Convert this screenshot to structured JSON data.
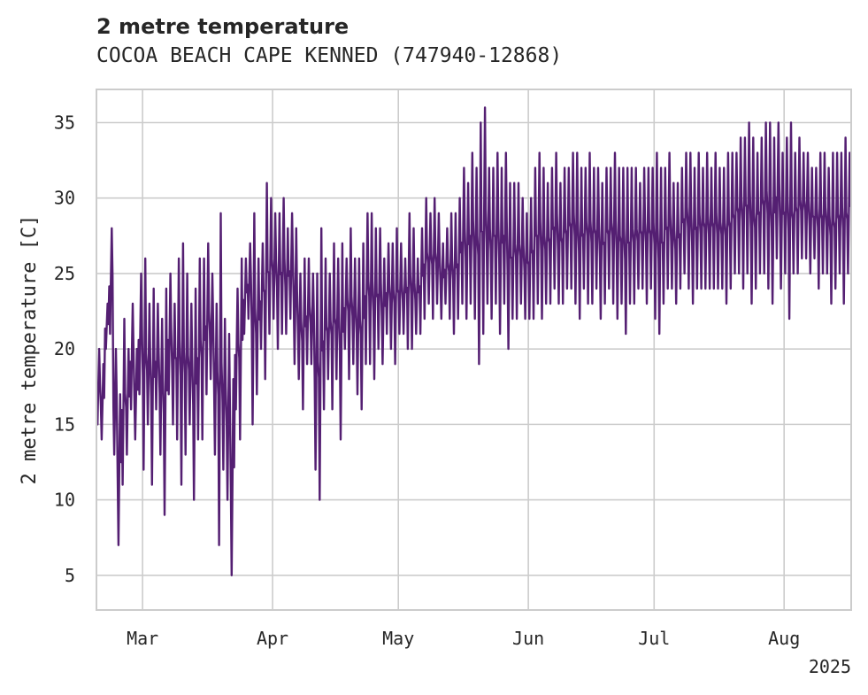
{
  "chart_data": {
    "type": "line",
    "title": "2 metre temperature",
    "subtitle": "COCOA BEACH CAPE KENNED (747940-12868)",
    "ylabel": "2 metre temperature [C]",
    "xlabel": "",
    "year_label": "2025",
    "x_range": [
      "2025-02-18",
      "2025-08-16"
    ],
    "ylim": [
      2.7,
      37.2
    ],
    "yticks": [
      5,
      10,
      15,
      20,
      25,
      30,
      35
    ],
    "xticks": [
      {
        "date": "2025-03-01",
        "label": "Mar"
      },
      {
        "date": "2025-04-01",
        "label": "Apr"
      },
      {
        "date": "2025-05-01",
        "label": "May"
      },
      {
        "date": "2025-06-01",
        "label": "Jun"
      },
      {
        "date": "2025-07-01",
        "label": "Jul"
      },
      {
        "date": "2025-08-01",
        "label": "Aug"
      }
    ],
    "grid": true,
    "line_color": "#541f72",
    "series": [
      {
        "x": [
          "2025-02-18",
          "2025-02-19",
          "2025-02-20",
          "2025-02-21",
          "2025-02-22",
          "2025-02-23",
          "2025-02-24",
          "2025-02-25",
          "2025-02-26",
          "2025-02-27",
          "2025-02-28",
          "2025-03-01",
          "2025-03-02",
          "2025-03-03",
          "2025-03-04",
          "2025-03-05",
          "2025-03-06",
          "2025-03-07",
          "2025-03-08",
          "2025-03-09",
          "2025-03-10",
          "2025-03-11",
          "2025-03-12",
          "2025-03-13",
          "2025-03-14",
          "2025-03-15",
          "2025-03-16",
          "2025-03-17",
          "2025-03-18",
          "2025-03-19",
          "2025-03-20",
          "2025-03-21",
          "2025-03-22",
          "2025-03-23",
          "2025-03-24",
          "2025-03-25",
          "2025-03-26",
          "2025-03-27",
          "2025-03-28",
          "2025-03-29",
          "2025-03-30",
          "2025-03-31",
          "2025-04-01",
          "2025-04-02",
          "2025-04-03",
          "2025-04-04",
          "2025-04-05",
          "2025-04-06",
          "2025-04-07",
          "2025-04-08",
          "2025-04-09",
          "2025-04-10",
          "2025-04-11",
          "2025-04-12",
          "2025-04-13",
          "2025-04-14",
          "2025-04-15",
          "2025-04-16",
          "2025-04-17",
          "2025-04-18",
          "2025-04-19",
          "2025-04-20",
          "2025-04-21",
          "2025-04-22",
          "2025-04-23",
          "2025-04-24",
          "2025-04-25",
          "2025-04-26",
          "2025-04-27",
          "2025-04-28",
          "2025-04-29",
          "2025-04-30",
          "2025-05-01",
          "2025-05-02",
          "2025-05-03",
          "2025-05-04",
          "2025-05-05",
          "2025-05-06",
          "2025-05-07",
          "2025-05-08",
          "2025-05-09",
          "2025-05-10",
          "2025-05-11",
          "2025-05-12",
          "2025-05-13",
          "2025-05-14",
          "2025-05-15",
          "2025-05-16",
          "2025-05-17",
          "2025-05-18",
          "2025-05-19",
          "2025-05-20",
          "2025-05-21",
          "2025-05-22",
          "2025-05-23",
          "2025-05-24",
          "2025-05-25",
          "2025-05-26",
          "2025-05-27",
          "2025-05-28",
          "2025-05-29",
          "2025-05-30",
          "2025-05-31",
          "2025-06-01",
          "2025-06-02",
          "2025-06-03",
          "2025-06-04",
          "2025-06-05",
          "2025-06-06",
          "2025-06-07",
          "2025-06-08",
          "2025-06-09",
          "2025-06-10",
          "2025-06-11",
          "2025-06-12",
          "2025-06-13",
          "2025-06-14",
          "2025-06-15",
          "2025-06-16",
          "2025-06-17",
          "2025-06-18",
          "2025-06-19",
          "2025-06-20",
          "2025-06-21",
          "2025-06-22",
          "2025-06-23",
          "2025-06-24",
          "2025-06-25",
          "2025-06-26",
          "2025-06-27",
          "2025-06-28",
          "2025-06-29",
          "2025-06-30",
          "2025-07-01",
          "2025-07-02",
          "2025-07-03",
          "2025-07-04",
          "2025-07-05",
          "2025-07-06",
          "2025-07-07",
          "2025-07-08",
          "2025-07-09",
          "2025-07-10",
          "2025-07-11",
          "2025-07-12",
          "2025-07-13",
          "2025-07-14",
          "2025-07-15",
          "2025-07-16",
          "2025-07-17",
          "2025-07-18",
          "2025-07-19",
          "2025-07-20",
          "2025-07-21",
          "2025-07-22",
          "2025-07-23",
          "2025-07-24",
          "2025-07-25",
          "2025-07-26",
          "2025-07-27",
          "2025-07-28",
          "2025-07-29",
          "2025-07-30",
          "2025-07-31",
          "2025-08-01",
          "2025-08-02",
          "2025-08-03",
          "2025-08-04",
          "2025-08-05",
          "2025-08-06",
          "2025-08-07",
          "2025-08-08",
          "2025-08-09",
          "2025-08-10",
          "2025-08-11",
          "2025-08-12",
          "2025-08-13",
          "2025-08-14",
          "2025-08-15",
          "2025-08-16"
        ],
        "min": [
          15,
          14,
          20,
          21,
          13,
          7,
          11,
          13,
          16,
          14,
          17,
          12,
          15,
          11,
          16,
          13,
          9,
          17,
          15,
          14,
          11,
          13,
          15,
          10,
          14,
          14,
          17,
          18,
          13,
          7,
          12,
          10,
          5,
          16,
          14,
          21,
          22,
          15,
          17,
          20,
          18,
          21,
          22,
          20,
          21,
          21,
          22,
          19,
          18,
          16,
          19,
          19,
          12,
          10,
          16,
          18,
          16,
          18,
          14,
          20,
          18,
          19,
          17,
          16,
          19,
          19,
          18,
          20,
          19,
          21,
          20,
          19,
          21,
          21,
          20,
          20,
          21,
          21,
          22,
          23,
          22,
          23,
          22,
          23,
          22,
          21,
          22,
          23,
          22,
          23,
          22,
          19,
          21,
          23,
          22,
          23,
          21,
          23,
          20,
          22,
          22,
          23,
          22,
          22,
          22,
          23,
          22,
          23,
          23,
          24,
          23,
          23,
          24,
          24,
          23,
          22,
          24,
          23,
          23,
          24,
          22,
          23,
          24,
          23,
          22,
          23,
          21,
          23,
          23,
          24,
          24,
          23,
          24,
          22,
          21,
          23,
          24,
          24,
          23,
          24,
          25,
          24,
          23,
          24,
          24,
          24,
          24,
          24,
          24,
          24,
          23,
          24,
          25,
          25,
          24,
          25,
          23,
          24,
          25,
          25,
          24,
          23,
          26,
          24,
          25,
          22,
          25,
          25,
          26,
          26,
          25,
          26,
          24,
          25,
          25,
          23,
          24,
          25,
          23,
          25,
          26,
          25,
          25,
          26,
          26,
          26,
          25,
          26
        ],
        "max": [
          20,
          19,
          23,
          28,
          20,
          17,
          22,
          20,
          23,
          20,
          25,
          26,
          23,
          24,
          23,
          22,
          24,
          25,
          23,
          26,
          27,
          25,
          23,
          24,
          26,
          26,
          27,
          25,
          23,
          29,
          22,
          21,
          18,
          24,
          26,
          26,
          27,
          29,
          26,
          27,
          31,
          30,
          29,
          29,
          30,
          28,
          29,
          28,
          25,
          26,
          26,
          25,
          25,
          28,
          26,
          25,
          27,
          26,
          27,
          26,
          28,
          26,
          26,
          27,
          29,
          29,
          28,
          28,
          26,
          27,
          27,
          28,
          27,
          26,
          29,
          28,
          26,
          28,
          30,
          29,
          30,
          29,
          27,
          28,
          29,
          29,
          30,
          32,
          31,
          33,
          32,
          35,
          36,
          32,
          32,
          33,
          32,
          33,
          31,
          31,
          31,
          30,
          29,
          30,
          32,
          33,
          32,
          31,
          32,
          33,
          31,
          32,
          32,
          33,
          33,
          32,
          32,
          33,
          32,
          32,
          31,
          32,
          32,
          33,
          32,
          32,
          32,
          32,
          32,
          31,
          32,
          32,
          32,
          33,
          32,
          32,
          33,
          31,
          31,
          32,
          33,
          33,
          32,
          33,
          32,
          33,
          32,
          33,
          32,
          32,
          33,
          33,
          33,
          34,
          34,
          35,
          34,
          33,
          34,
          35,
          35,
          34,
          35,
          33,
          34,
          35,
          33,
          34,
          33,
          33,
          32,
          32,
          33,
          33,
          32,
          33,
          33,
          33,
          34,
          33,
          33,
          34,
          33,
          34,
          34,
          33,
          34
        ]
      }
    ]
  }
}
